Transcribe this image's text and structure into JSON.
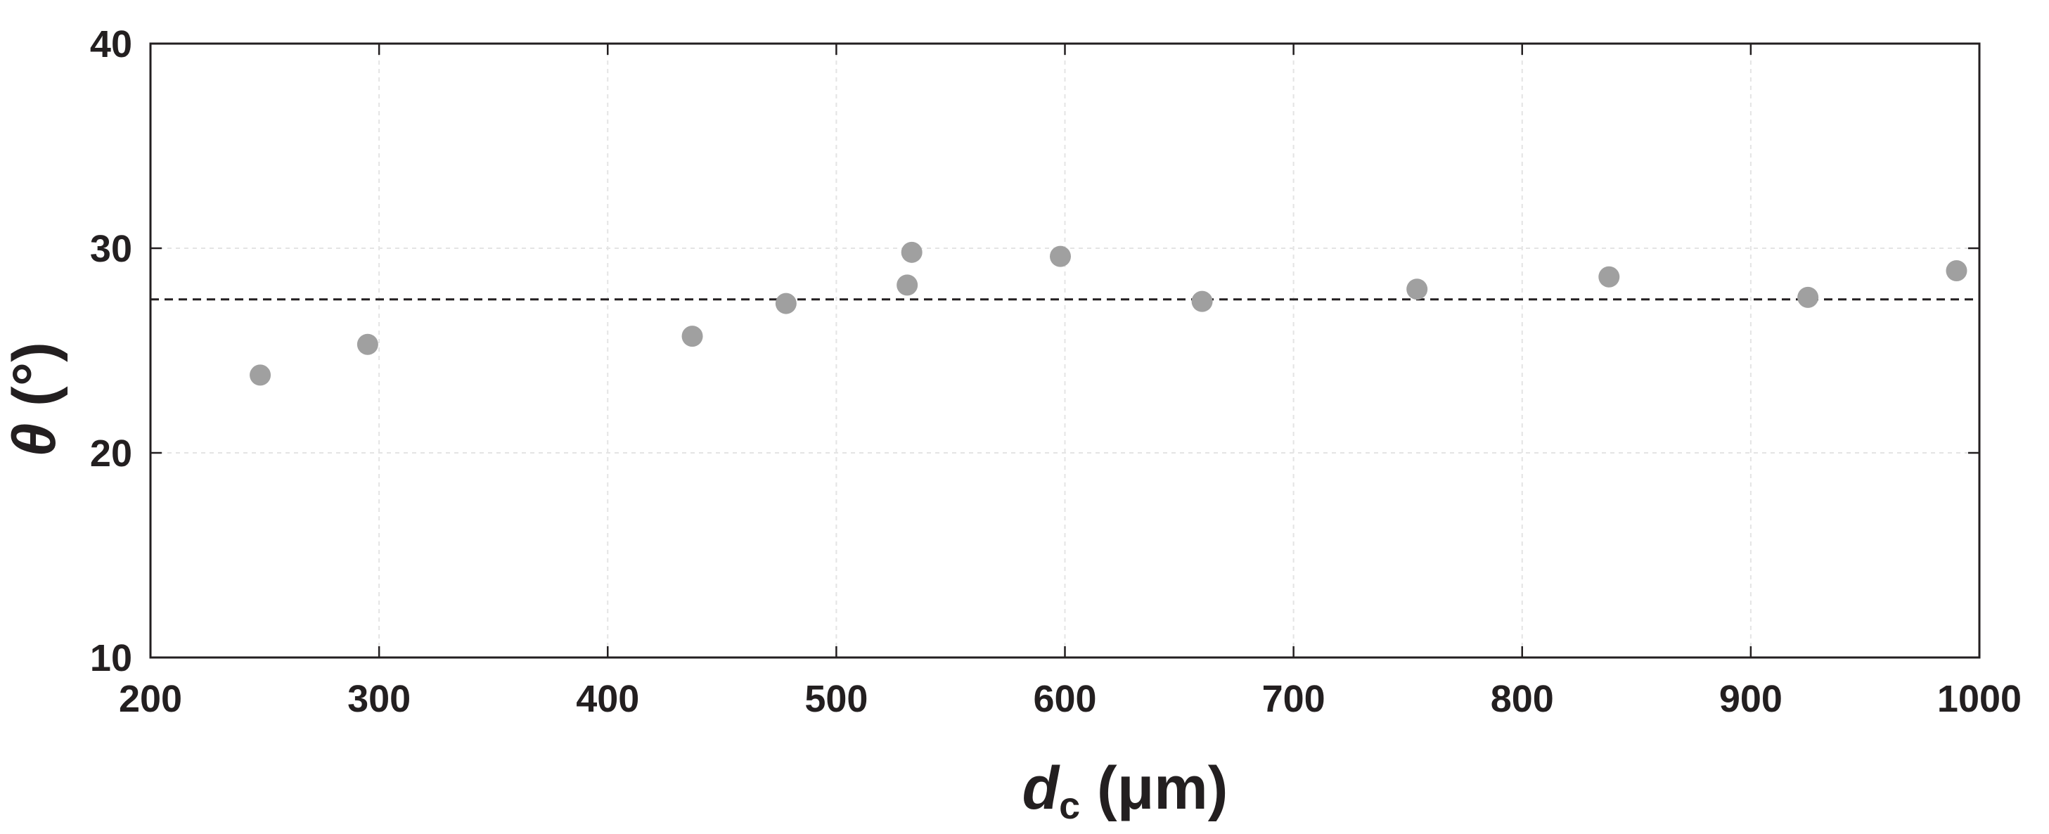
{
  "chart_data": {
    "type": "scatter",
    "title": "",
    "xlabel": {
      "symbol": "d",
      "subscript": "c",
      "unit": " (μm)"
    },
    "ylabel": {
      "symbol": "θ",
      "unit": " (°)"
    },
    "xlim": [
      200,
      1000
    ],
    "ylim": [
      10,
      40
    ],
    "xticks": [
      "200",
      "300",
      "400",
      "500",
      "600",
      "700",
      "800",
      "900",
      "1000"
    ],
    "yticks": [
      "10",
      "20",
      "30",
      "40"
    ],
    "grid": true,
    "legend": "none",
    "series": [
      {
        "color": "#a0a0a0",
        "marker": "circle",
        "x": [
          248,
          295,
          437,
          478,
          531,
          533,
          598,
          660,
          754,
          838,
          925,
          990
        ],
        "y": [
          23.8,
          25.3,
          25.7,
          27.3,
          28.2,
          29.8,
          29.6,
          27.4,
          28.0,
          28.6,
          27.6,
          28.9
        ]
      }
    ],
    "reference_line": {
      "y": 27.5,
      "style": "dashed",
      "color": "#231f20"
    },
    "colors": {
      "axis": "#231f20",
      "grid": "#e4e4e4"
    }
  }
}
